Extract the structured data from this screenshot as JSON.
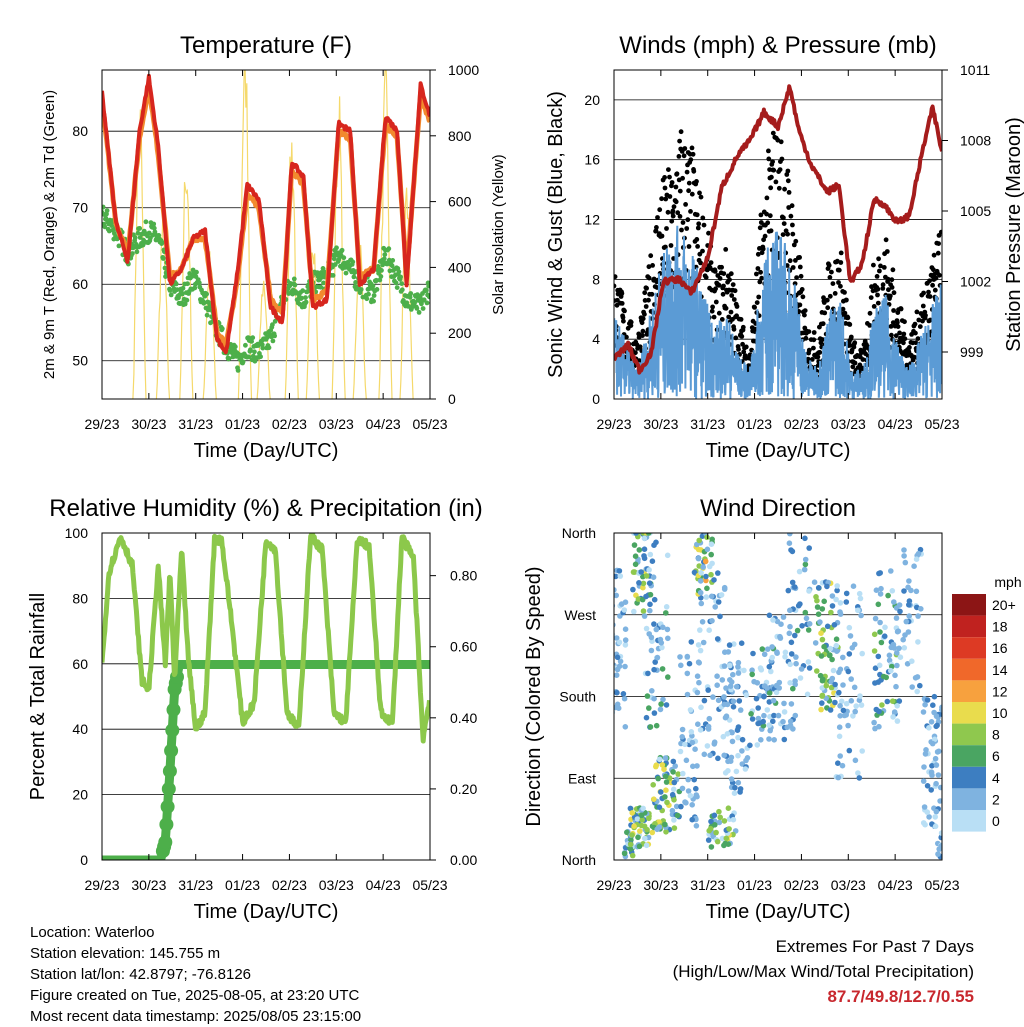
{
  "time_ticks": [
    "29/23",
    "30/23",
    "31/23",
    "01/23",
    "02/23",
    "03/23",
    "04/23",
    "05/23"
  ],
  "time_xlabel": "Time (Day/UTC)",
  "info": {
    "location": "Location: Waterloo",
    "elevation": "Station elevation: 145.755 m",
    "latlon": "Station lat/lon: 42.8797; -76.8126",
    "created": "Figure created on Tue, 2025-08-05, at 23:20 UTC",
    "recent": "Most recent data timestamp: 2025/08/05 23:15:00"
  },
  "extremes": {
    "title": "Extremes For Past 7 Days",
    "subtitle": "(High/Low/Max Wind/Total Precipitation)",
    "values": "87.7/49.8/12.7/0.55"
  },
  "colors": {
    "temp2m": "#d7261e",
    "temp9m": "#f28a2e",
    "dewpoint": "#4daf4a",
    "solar": "#f5d96b",
    "wind": "#5b9bd5",
    "gust": "#000000",
    "pressure": "#a51c1c",
    "rh": "#8cc84b",
    "rain": "#4daf4a"
  },
  "chart_data": [
    {
      "type": "line",
      "title": "Temperature (F)",
      "xlabel": "Time (Day/UTC)",
      "ylabel": "2m & 9m T (Red, Orange) & 2m Td (Green)",
      "ylabel_right": "Solar Insolation (Yellow)",
      "ylim": [
        45,
        88
      ],
      "yticks": [
        50,
        60,
        70,
        80
      ],
      "ylim_right": [
        0,
        1000
      ],
      "yticks_right": [
        0,
        200,
        400,
        600,
        800,
        1000
      ],
      "grid": true,
      "x_days": [
        0,
        0.3,
        0.55,
        0.8,
        1.0,
        1.2,
        1.45,
        1.7,
        1.95,
        2.2,
        2.45,
        2.65,
        2.9,
        3.1,
        3.35,
        3.6,
        3.85,
        4.05,
        4.3,
        4.5,
        4.8,
        5.05,
        5.3,
        5.5,
        5.8,
        6.05,
        6.3,
        6.5,
        6.8,
        7.0
      ],
      "series": [
        {
          "name": "2m T",
          "values": [
            85,
            68,
            63,
            80,
            87,
            78,
            60,
            62,
            66,
            67,
            53,
            51,
            62,
            73,
            71,
            57,
            55,
            76,
            74,
            57,
            58,
            81,
            80,
            60,
            62,
            82,
            80,
            60,
            86,
            82
          ]
        },
        {
          "name": "9m T",
          "values": [
            84,
            68,
            64,
            79,
            86,
            77,
            61,
            62,
            66,
            66,
            54,
            52,
            61,
            72,
            70,
            58,
            56,
            75,
            73,
            58,
            59,
            80,
            79,
            61,
            62,
            81,
            79,
            61,
            85,
            81
          ]
        },
        {
          "name": "2m Td",
          "values": [
            69,
            67,
            64,
            66,
            67,
            66,
            60,
            58,
            61,
            58,
            54,
            52,
            50,
            52,
            51,
            53,
            58,
            60,
            58,
            60,
            61,
            64,
            62,
            60,
            59,
            64,
            61,
            58,
            57,
            60
          ]
        }
      ],
      "solar_days": [
        0.8,
        1.3,
        1.8,
        2.3,
        3.05,
        3.45,
        4.05,
        4.5,
        5.05,
        5.5,
        6.05,
        6.5
      ],
      "solar_values": [
        850,
        500,
        700,
        400,
        1000,
        350,
        750,
        500,
        850,
        450,
        900,
        600
      ]
    },
    {
      "type": "line",
      "title": "Winds (mph) & Pressure (mb)",
      "xlabel": "Time (Day/UTC)",
      "ylabel": "Sonic Wind & Gust (Blue, Black)",
      "ylabel_right": "Station Pressure (Maroon)",
      "ylim": [
        0,
        22
      ],
      "yticks": [
        0,
        4,
        8,
        12,
        16,
        20
      ],
      "ylim_right": [
        997,
        1011
      ],
      "yticks_right": [
        999,
        1002,
        1005,
        1008,
        1011
      ],
      "grid": true,
      "gust_envelope": [
        9,
        6,
        4,
        8,
        14,
        15,
        18,
        16,
        12,
        8,
        10,
        6,
        3,
        12,
        18,
        17,
        12,
        5,
        4,
        9,
        10,
        4,
        3,
        9,
        11,
        7,
        4,
        6,
        9,
        11
      ],
      "wind_envelope": [
        6,
        4,
        2,
        5,
        9,
        11,
        12,
        10,
        7,
        5,
        6,
        3,
        2,
        8,
        12,
        11,
        8,
        3,
        2,
        6,
        7,
        2,
        2,
        6,
        7,
        4,
        2,
        4,
        6,
        8
      ],
      "pressure_days": [
        0,
        0.3,
        0.55,
        0.8,
        1.05,
        1.4,
        1.65,
        2.0,
        2.3,
        2.65,
        2.9,
        3.2,
        3.5,
        3.75,
        3.95,
        4.2,
        4.55,
        4.8,
        5.05,
        5.3,
        5.55,
        5.75,
        6.05,
        6.3,
        6.6,
        6.8,
        7.0
      ],
      "pressure_values": [
        998.7,
        999.3,
        998.2,
        999.0,
        1002.0,
        1002.1,
        1001.5,
        1003.0,
        1006.0,
        1007.4,
        1008.0,
        1009.2,
        1008.6,
        1010.3,
        1008.4,
        1007.0,
        1005.8,
        1006.1,
        1001.9,
        1002.8,
        1005.5,
        1005.3,
        1004.5,
        1004.8,
        1007.7,
        1009.4,
        1007.5
      ]
    },
    {
      "type": "line",
      "title": "Relative Humidity (%) & Precipitation (in)",
      "xlabel": "Time (Day/UTC)",
      "ylabel": "Percent & Total Rainfall",
      "ylim": [
        0,
        100
      ],
      "yticks": [
        0,
        20,
        40,
        60,
        80,
        100
      ],
      "ylim_right": [
        0,
        0.92
      ],
      "yticks_right": [
        "0.00",
        "0.20",
        "0.40",
        "0.60",
        "0.80"
      ],
      "grid": true,
      "rh_days": [
        0,
        0.15,
        0.4,
        0.65,
        0.85,
        1.0,
        1.2,
        1.35,
        1.45,
        1.55,
        1.7,
        1.85,
        2.0,
        2.2,
        2.4,
        2.55,
        2.75,
        3.0,
        3.25,
        3.5,
        3.7,
        3.95,
        4.2,
        4.45,
        4.7,
        4.95,
        5.2,
        5.45,
        5.7,
        5.95,
        6.2,
        6.4,
        6.65,
        6.85,
        7.0
      ],
      "rh_values": [
        60,
        88,
        99,
        90,
        55,
        52,
        90,
        60,
        88,
        55,
        95,
        60,
        40,
        45,
        98,
        98,
        75,
        42,
        48,
        98,
        95,
        45,
        40,
        99,
        95,
        45,
        42,
        98,
        96,
        45,
        42,
        99,
        92,
        37,
        50
      ],
      "rain_days": [
        0,
        1.25,
        1.35,
        1.45,
        1.55,
        1.65,
        7.0
      ],
      "rain_values": [
        0.0,
        0.0,
        0.05,
        0.25,
        0.48,
        0.55,
        0.55
      ]
    },
    {
      "type": "scatter",
      "title": "Wind Direction",
      "xlabel": "Time (Day/UTC)",
      "ylabel": "Direction (Colored By Speed)",
      "yticks": [
        "North",
        "West",
        "South",
        "East",
        "North"
      ],
      "colorbar_label": "mph",
      "colorbar_labels": [
        "20+",
        "18",
        "16",
        "14",
        "12",
        "10",
        "8",
        "6",
        "4",
        "2",
        "0"
      ],
      "colorbar_colors": [
        "#8c1515",
        "#c0221f",
        "#dd3a24",
        "#f0682a",
        "#f7a13e",
        "#e9dc4d",
        "#8fc84e",
        "#4aa562",
        "#3d7ec1",
        "#7fb3e0",
        "#b9dff5"
      ]
    }
  ]
}
